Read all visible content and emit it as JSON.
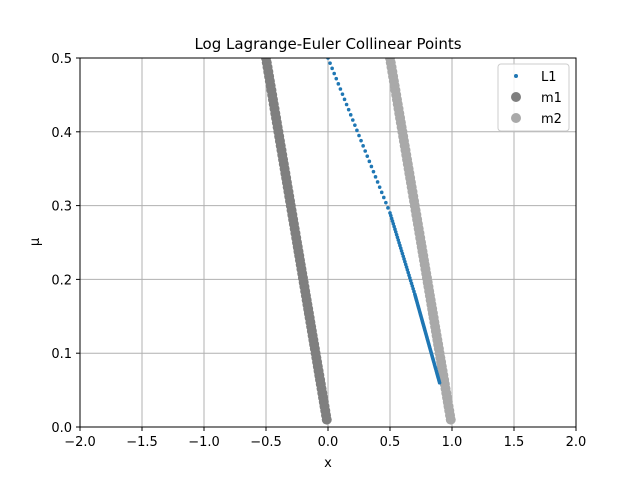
{
  "chart_data": {
    "type": "scatter",
    "title": "Log Lagrange-Euler Collinear Points",
    "xlabel": "x",
    "ylabel": "μ",
    "xlim": [
      -2.0,
      2.0
    ],
    "ylim": [
      0.0,
      0.5
    ],
    "xticks": [
      "−2.0",
      "−1.5",
      "−1.0",
      "−0.5",
      "0.0",
      "0.5",
      "1.0",
      "1.5",
      "2.0"
    ],
    "yticks": [
      "0.0",
      "0.1",
      "0.2",
      "0.3",
      "0.4",
      "0.5"
    ],
    "grid": true,
    "legend_position": "top-right",
    "series": [
      {
        "name": "L1",
        "color": "#1f77b4",
        "marker": "small-dot",
        "mu_range": [
          0.06,
          0.5
        ],
        "x_formula": "1 - mu - (mu/3)^(1/3) approx; endpoints",
        "points_sample": [
          [
            0.0,
            0.5
          ],
          [
            0.5,
            0.29
          ],
          [
            0.7,
            0.18
          ],
          [
            0.8,
            0.12
          ],
          [
            0.9,
            0.06
          ]
        ]
      },
      {
        "name": "m1",
        "color": "#7f7f7f",
        "marker": "large-dot",
        "mu_range": [
          0.01,
          0.5
        ],
        "x_formula": "-mu",
        "points_sample": [
          [
            -0.5,
            0.5
          ],
          [
            -0.25,
            0.25
          ],
          [
            -0.01,
            0.01
          ]
        ]
      },
      {
        "name": "m2",
        "color": "#a9a9a9",
        "marker": "large-dot",
        "mu_range": [
          0.01,
          0.5
        ],
        "x_formula": "1 - mu",
        "points_sample": [
          [
            0.5,
            0.5
          ],
          [
            0.75,
            0.25
          ],
          [
            0.99,
            0.01
          ]
        ]
      }
    ]
  }
}
